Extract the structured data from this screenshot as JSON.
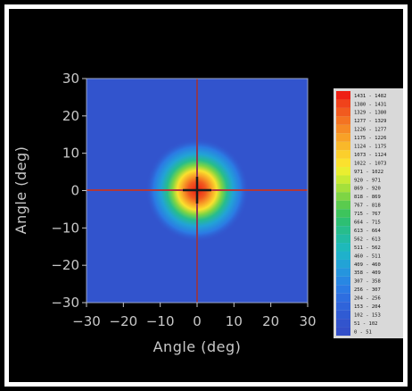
{
  "chart_data": {
    "type": "heatmap",
    "xlabel": "Angle (deg)",
    "ylabel": "Angle (deg)",
    "xlim": [
      -30,
      30
    ],
    "ylim": [
      -30,
      30
    ],
    "x_ticks": [
      -30,
      -20,
      -10,
      0,
      10,
      20,
      30
    ],
    "y_ticks": [
      -30,
      -20,
      -10,
      0,
      10,
      20,
      30
    ],
    "tick_labels_x": [
      "−30",
      "−20",
      "−10",
      "0",
      "10",
      "20",
      "30"
    ],
    "tick_labels_y": [
      "30",
      "20",
      "10",
      "0",
      "−10",
      "−20",
      "−30"
    ],
    "peak_center": [
      0,
      0
    ],
    "peak_value": 1482,
    "approx_fwhm_deg": 6,
    "crosshair": {
      "x": 0,
      "y": 0
    },
    "legend_position": "right",
    "color_levels": [
      {
        "label": "1431 - 1482",
        "color": "#ee1f14"
      },
      {
        "label": "1380 - 1431",
        "color": "#f0421b"
      },
      {
        "label": "1329 - 1380",
        "color": "#f15a1f"
      },
      {
        "label": "1277 - 1329",
        "color": "#f47322"
      },
      {
        "label": "1226 - 1277",
        "color": "#f68a25"
      },
      {
        "label": "1175 - 1226",
        "color": "#f8a127"
      },
      {
        "label": "1124 - 1175",
        "color": "#f9b82a"
      },
      {
        "label": "1073 - 1124",
        "color": "#fbcf2c"
      },
      {
        "label": "1022 - 1073",
        "color": "#fbe12e"
      },
      {
        "label": "971 - 1022",
        "color": "#eaee30"
      },
      {
        "label": "920 - 971",
        "color": "#c8ea34"
      },
      {
        "label": "869 - 920",
        "color": "#a4e03b"
      },
      {
        "label": "818 - 869",
        "color": "#7ed544"
      },
      {
        "label": "767 - 818",
        "color": "#5acb4e"
      },
      {
        "label": "715 - 767",
        "color": "#3dc45c"
      },
      {
        "label": "664 - 715",
        "color": "#2dbf73"
      },
      {
        "label": "613 - 664",
        "color": "#27bd8c"
      },
      {
        "label": "562 - 613",
        "color": "#22bba3"
      },
      {
        "label": "511 - 562",
        "color": "#1eb9ba"
      },
      {
        "label": "460 - 511",
        "color": "#1fb1cb"
      },
      {
        "label": "409 - 460",
        "color": "#22a3d6"
      },
      {
        "label": "358 - 409",
        "color": "#2595de"
      },
      {
        "label": "307 - 358",
        "color": "#2887e3"
      },
      {
        "label": "256 - 307",
        "color": "#2b7ae4"
      },
      {
        "label": "204 - 256",
        "color": "#2e6ee0"
      },
      {
        "label": "153 - 204",
        "color": "#2f64da"
      },
      {
        "label": "102 - 153",
        "color": "#305bd3"
      },
      {
        "label": "51 - 102",
        "color": "#3254cd"
      },
      {
        "label": "0 - 51",
        "color": "#334fc8"
      }
    ]
  }
}
